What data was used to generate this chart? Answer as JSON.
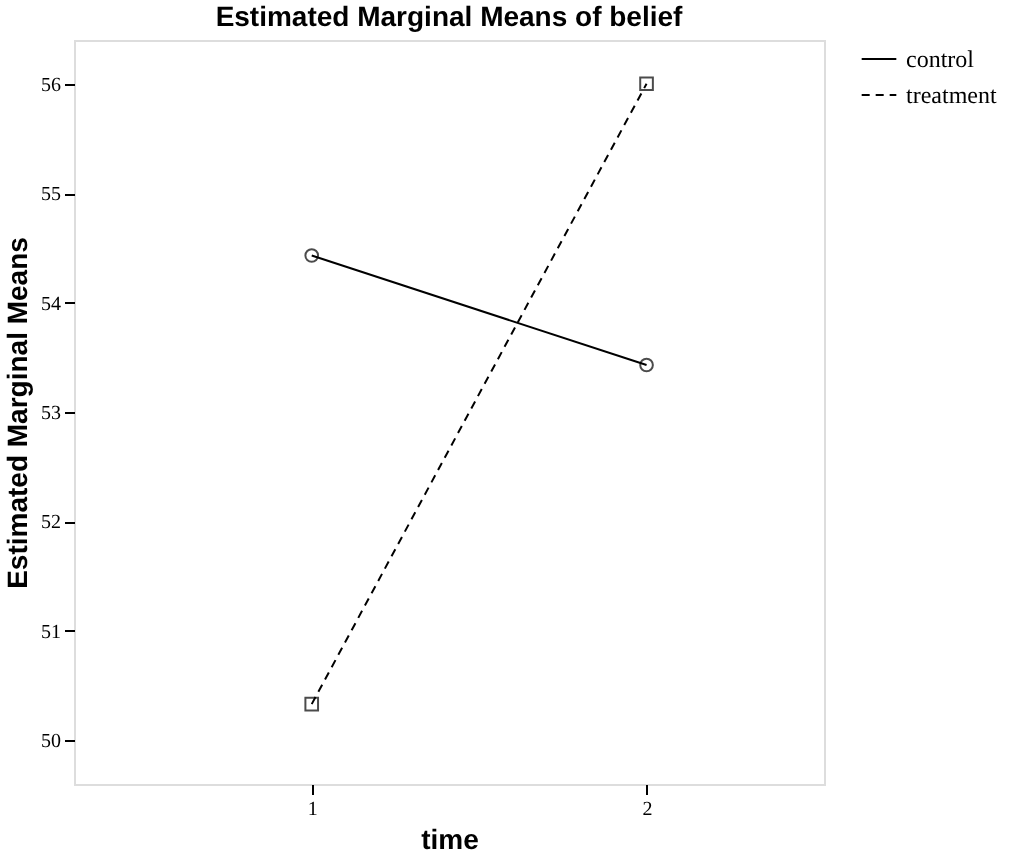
{
  "chart_data": {
    "type": "line",
    "title": "Estimated Marginal Means of belief",
    "xlabel": "time",
    "ylabel": "Estimated Marginal Means",
    "x": [
      1,
      2
    ],
    "xlim": [
      0.29,
      2.53
    ],
    "xticks": [
      1,
      2
    ],
    "ylim": [
      49.6,
      56.4
    ],
    "yticks": [
      50,
      51,
      52,
      53,
      54,
      55,
      56
    ],
    "series": [
      {
        "name": "control",
        "color": "#000000",
        "values": [
          54.43,
          53.43
        ],
        "marker": "circle",
        "line_style": "solid"
      },
      {
        "name": "treatment",
        "color": "#000000",
        "values": [
          50.33,
          56.0
        ],
        "marker": "square",
        "line_style": "dashed"
      }
    ],
    "legend": "right",
    "grid": false
  }
}
